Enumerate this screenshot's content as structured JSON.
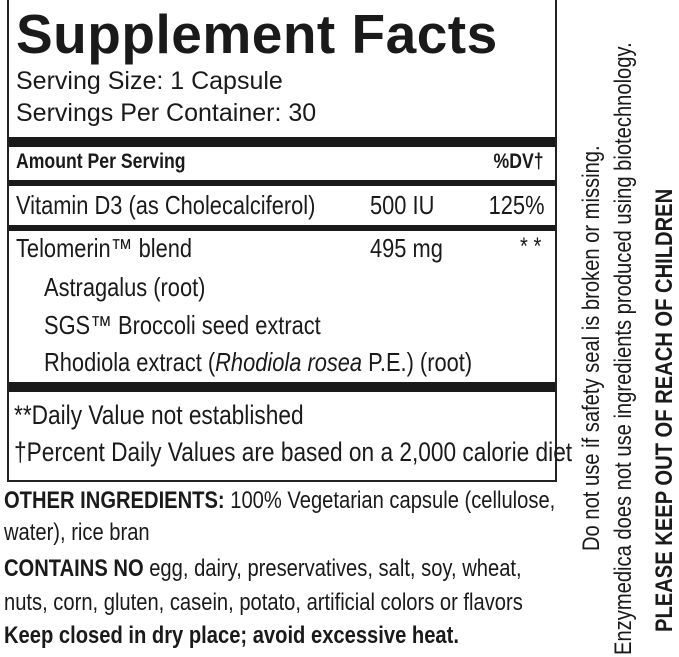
{
  "panel": {
    "title": "Supplement Facts",
    "serving_size": "Serving Size: 1 Capsule",
    "servings_per_container": "Servings Per Container: 30",
    "header_amount": "Amount Per Serving",
    "header_dv": "%DV†",
    "rows": [
      {
        "name": "Vitamin D3 (as Cholecalciferol)",
        "amount": "500 IU",
        "dv": "125%"
      },
      {
        "name": "Telomerin™ blend",
        "amount": "495 mg",
        "dv": "* *"
      }
    ],
    "sub_ingredients": [
      {
        "text": "Astragalus (root)"
      },
      {
        "text": "SGS™ Broccoli seed extract"
      },
      {
        "pre": "Rhodiola extract (",
        "italic": "Rhodiola rosea",
        "post": " P.E.) (root)"
      }
    ],
    "footnote_1": "**Daily Value not established",
    "footnote_2": "†Percent Daily Values are based on a 2,000 calorie diet"
  },
  "other": {
    "other_label": "OTHER INGREDIENTS:",
    "other_text_1": " 100% Vegetarian capsule (cellulose,",
    "other_text_2": "water), rice bran",
    "contains_label": "CONTAINS NO",
    "contains_text_1": " egg, dairy, preservatives, salt, soy, wheat,",
    "contains_text_2": "nuts, corn, gluten, casein, potato, artificial colors or flavors",
    "storage": "Keep closed in dry place; avoid excessive heat."
  },
  "side": {
    "seal_warning": "Do not use if safety seal is broken or missing.",
    "biotech_note": "Enzymedica does not use ingredients produced using biotechnology.",
    "children_warning": "PLEASE KEEP OUT OF REACH OF CHILDREN"
  }
}
